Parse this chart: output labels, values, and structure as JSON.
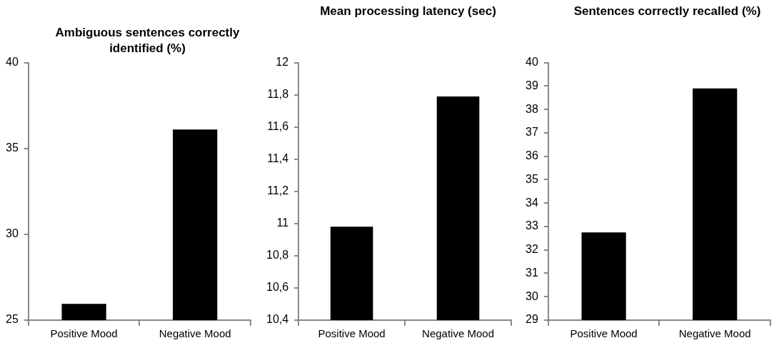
{
  "chart_data": [
    {
      "type": "bar",
      "title": "Ambiguous sentences correctly identified (%)",
      "categories": [
        "Positive Mood",
        "Negative Mood"
      ],
      "values": [
        25.95,
        36.1
      ],
      "color": "#000000",
      "ylim": [
        25,
        40
      ],
      "yticks": [
        25,
        30,
        35,
        40
      ],
      "grid": false,
      "legend": false
    },
    {
      "type": "bar",
      "title": "Mean processing latency (sec)",
      "categories": [
        "Positive Mood",
        "Negative Mood"
      ],
      "values": [
        10.98,
        11.79
      ],
      "color": "#000000",
      "ylim": [
        10.4,
        12
      ],
      "yticks": [
        {
          "value": 10.4,
          "label": "10,4"
        },
        {
          "value": 10.6,
          "label": "10,6"
        },
        {
          "value": 10.8,
          "label": "10,8"
        },
        11,
        {
          "value": 11.2,
          "label": "11,2"
        },
        {
          "value": 11.4,
          "label": "11,4"
        },
        {
          "value": 11.6,
          "label": "11,6"
        },
        {
          "value": 11.8,
          "label": "11,8"
        },
        12
      ],
      "grid": false,
      "legend": false
    },
    {
      "type": "bar",
      "title": "Sentences correctly recalled (%)",
      "categories": [
        "Positive Mood",
        "Negative Mood"
      ],
      "values": [
        32.75,
        38.9
      ],
      "color": "#000000",
      "ylim": [
        29,
        40
      ],
      "yticks": [
        29,
        30,
        31,
        32,
        33,
        34,
        35,
        36,
        37,
        38,
        39,
        40
      ],
      "grid": false,
      "legend": false
    }
  ]
}
